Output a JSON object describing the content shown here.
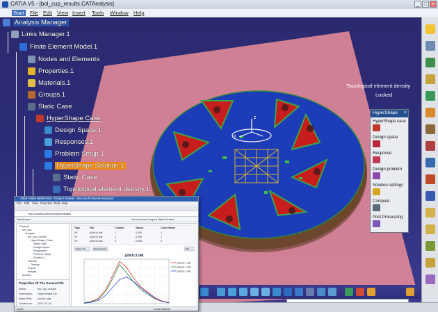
{
  "window": {
    "title": "CATIA V5 - [bol_cup_results.CATAnalysis]",
    "controls": [
      "_",
      "□",
      "×"
    ]
  },
  "menu": [
    "Start",
    "File",
    "Edit",
    "View",
    "Insert",
    "Tools",
    "Window",
    "Help"
  ],
  "tree": [
    {
      "label": "Analysis Manager",
      "icon": "analysis-manager-icon"
    },
    {
      "label": "Links Manager.1",
      "icon": "links-manager-icon"
    },
    {
      "label": "Finite Element Model.1",
      "icon": "fem-model-icon"
    },
    {
      "label": "Nodes and Elements",
      "icon": "nodes-elements-icon"
    },
    {
      "label": "Properties.1",
      "icon": "properties-icon"
    },
    {
      "label": "Materials.1",
      "icon": "materials-icon"
    },
    {
      "label": "Groups.1",
      "icon": "groups-icon"
    },
    {
      "label": "Static Case",
      "icon": "static-case-icon"
    },
    {
      "label": "HyperShape Case",
      "icon": "hypershape-case-icon"
    },
    {
      "label": "Design Space.1",
      "icon": "design-space-icon"
    },
    {
      "label": "Responses.1",
      "icon": "responses-icon"
    },
    {
      "label": "Problem Setup.1",
      "icon": "problem-setup-icon"
    },
    {
      "label": "HyperShape Solution.1",
      "icon": "hypershape-solution-icon"
    },
    {
      "label": "Static Case",
      "icon": "static-case-icon"
    },
    {
      "label": "Topological element density.1",
      "icon": "density-icon"
    }
  ],
  "viewport_label": {
    "line1": "Topological element density",
    "line2": "Locked"
  },
  "axes": {
    "x": "x",
    "z": "z"
  },
  "hypershape_panel": {
    "title": "HyperShape",
    "close": "×",
    "items": [
      {
        "label": "HyperShape case",
        "icon": "hypershape-case-tool-icon",
        "color": "#c0392b"
      },
      {
        "label": "Design space",
        "icon": "design-space-tool-icon",
        "color": "#b7263a"
      },
      {
        "label": "Response",
        "icon": "response-tool-icon",
        "color": "#c23a52"
      },
      {
        "label": "Design problem",
        "icon": "design-problem-tool-icon",
        "color": "#8a4ab0"
      },
      {
        "label": "Solution settings",
        "icon": "solution-settings-tool-icon",
        "color": "#d9a520"
      },
      {
        "label": "Compute",
        "icon": "compute-tool-icon",
        "color": "#5c6b7a"
      },
      {
        "label": "Post Processing",
        "icon": "post-processing-tool-icon",
        "color": "#7b57b8"
      }
    ]
  },
  "browser": {
    "title": "Altair HWM WebPortal - Project Details - Microsoft Internet Explorer",
    "menu": [
      "File",
      "Edit",
      "View",
      "Favorites",
      "Tools",
      "Help"
    ],
    "address": "http://localhost/hwm/project/details",
    "bar_left": "Dashboard",
    "bar_right": "Your Account  Logout  Help  Contact",
    "tree_items": [
      "Projects",
      "bol_cup",
      "Analysis",
      "bol_cup_results",
      "HyperShape_Case",
      "Static Case",
      "Design Space",
      "Responses",
      "Problem Setup",
      "Solution.1",
      "Results",
      "Density",
      "Report",
      "Images",
      "Archive"
    ],
    "props_title": "Properties Of The General File",
    "props": [
      {
        "k": "Name:",
        "v": "bol_cup_results"
      },
      {
        "k": "Description:",
        "v": "HyperShape run"
      },
      {
        "k": "Attach File:",
        "v": "p2w1c1.dat"
      },
      {
        "k": "Created on:",
        "v": "2007-03-14"
      }
    ],
    "status_left": "Done",
    "status_right": "Local intranet"
  },
  "plot": {
    "title": "p2w1c1.dat",
    "buttons": [
      "Select All",
      "Deselect All",
      "Plot"
    ],
    "table_headers": [
      "Type",
      "File",
      "Column",
      "Values",
      "Curve Name"
    ],
    "table_rows": [
      [
        "XY",
        "p2w1c1.dat",
        "1",
        "0.000",
        "1"
      ],
      [
        "XY",
        "p2w1c1.dat",
        "2",
        "0.000",
        "2"
      ],
      [
        "XY",
        "p2w1c1.dat",
        "3",
        "0.000",
        "3"
      ]
    ],
    "legend": [
      "p2w1c1 1 dat",
      "p2w1c1 2 dat",
      "p2w1c1 3 dat"
    ]
  },
  "chart_data": {
    "type": "line",
    "title": "p2w1c1.dat",
    "x": [
      0,
      2,
      4,
      6,
      8,
      10,
      12,
      14,
      16,
      18,
      20,
      22,
      24
    ],
    "series": [
      {
        "name": "p2w1c1 1 dat",
        "values": [
          0.02,
          0.05,
          0.12,
          0.3,
          0.62,
          0.95,
          0.82,
          0.58,
          0.38,
          0.26,
          0.14,
          0.06,
          0.03
        ]
      },
      {
        "name": "p2w1c1 2 dat",
        "values": [
          0.02,
          0.04,
          0.1,
          0.26,
          0.55,
          0.88,
          0.7,
          0.49,
          0.32,
          0.21,
          0.11,
          0.05,
          0.02
        ]
      },
      {
        "name": "p2w1c1 3 dat",
        "values": [
          0.01,
          0.03,
          0.07,
          0.18,
          0.36,
          0.54,
          0.6,
          0.5,
          0.36,
          0.24,
          0.12,
          0.05,
          0.02
        ]
      }
    ],
    "colors": [
      "#d93a3a",
      "#2c8a3a",
      "#3a4fd0"
    ],
    "ylim": [
      0,
      1
    ]
  }
}
